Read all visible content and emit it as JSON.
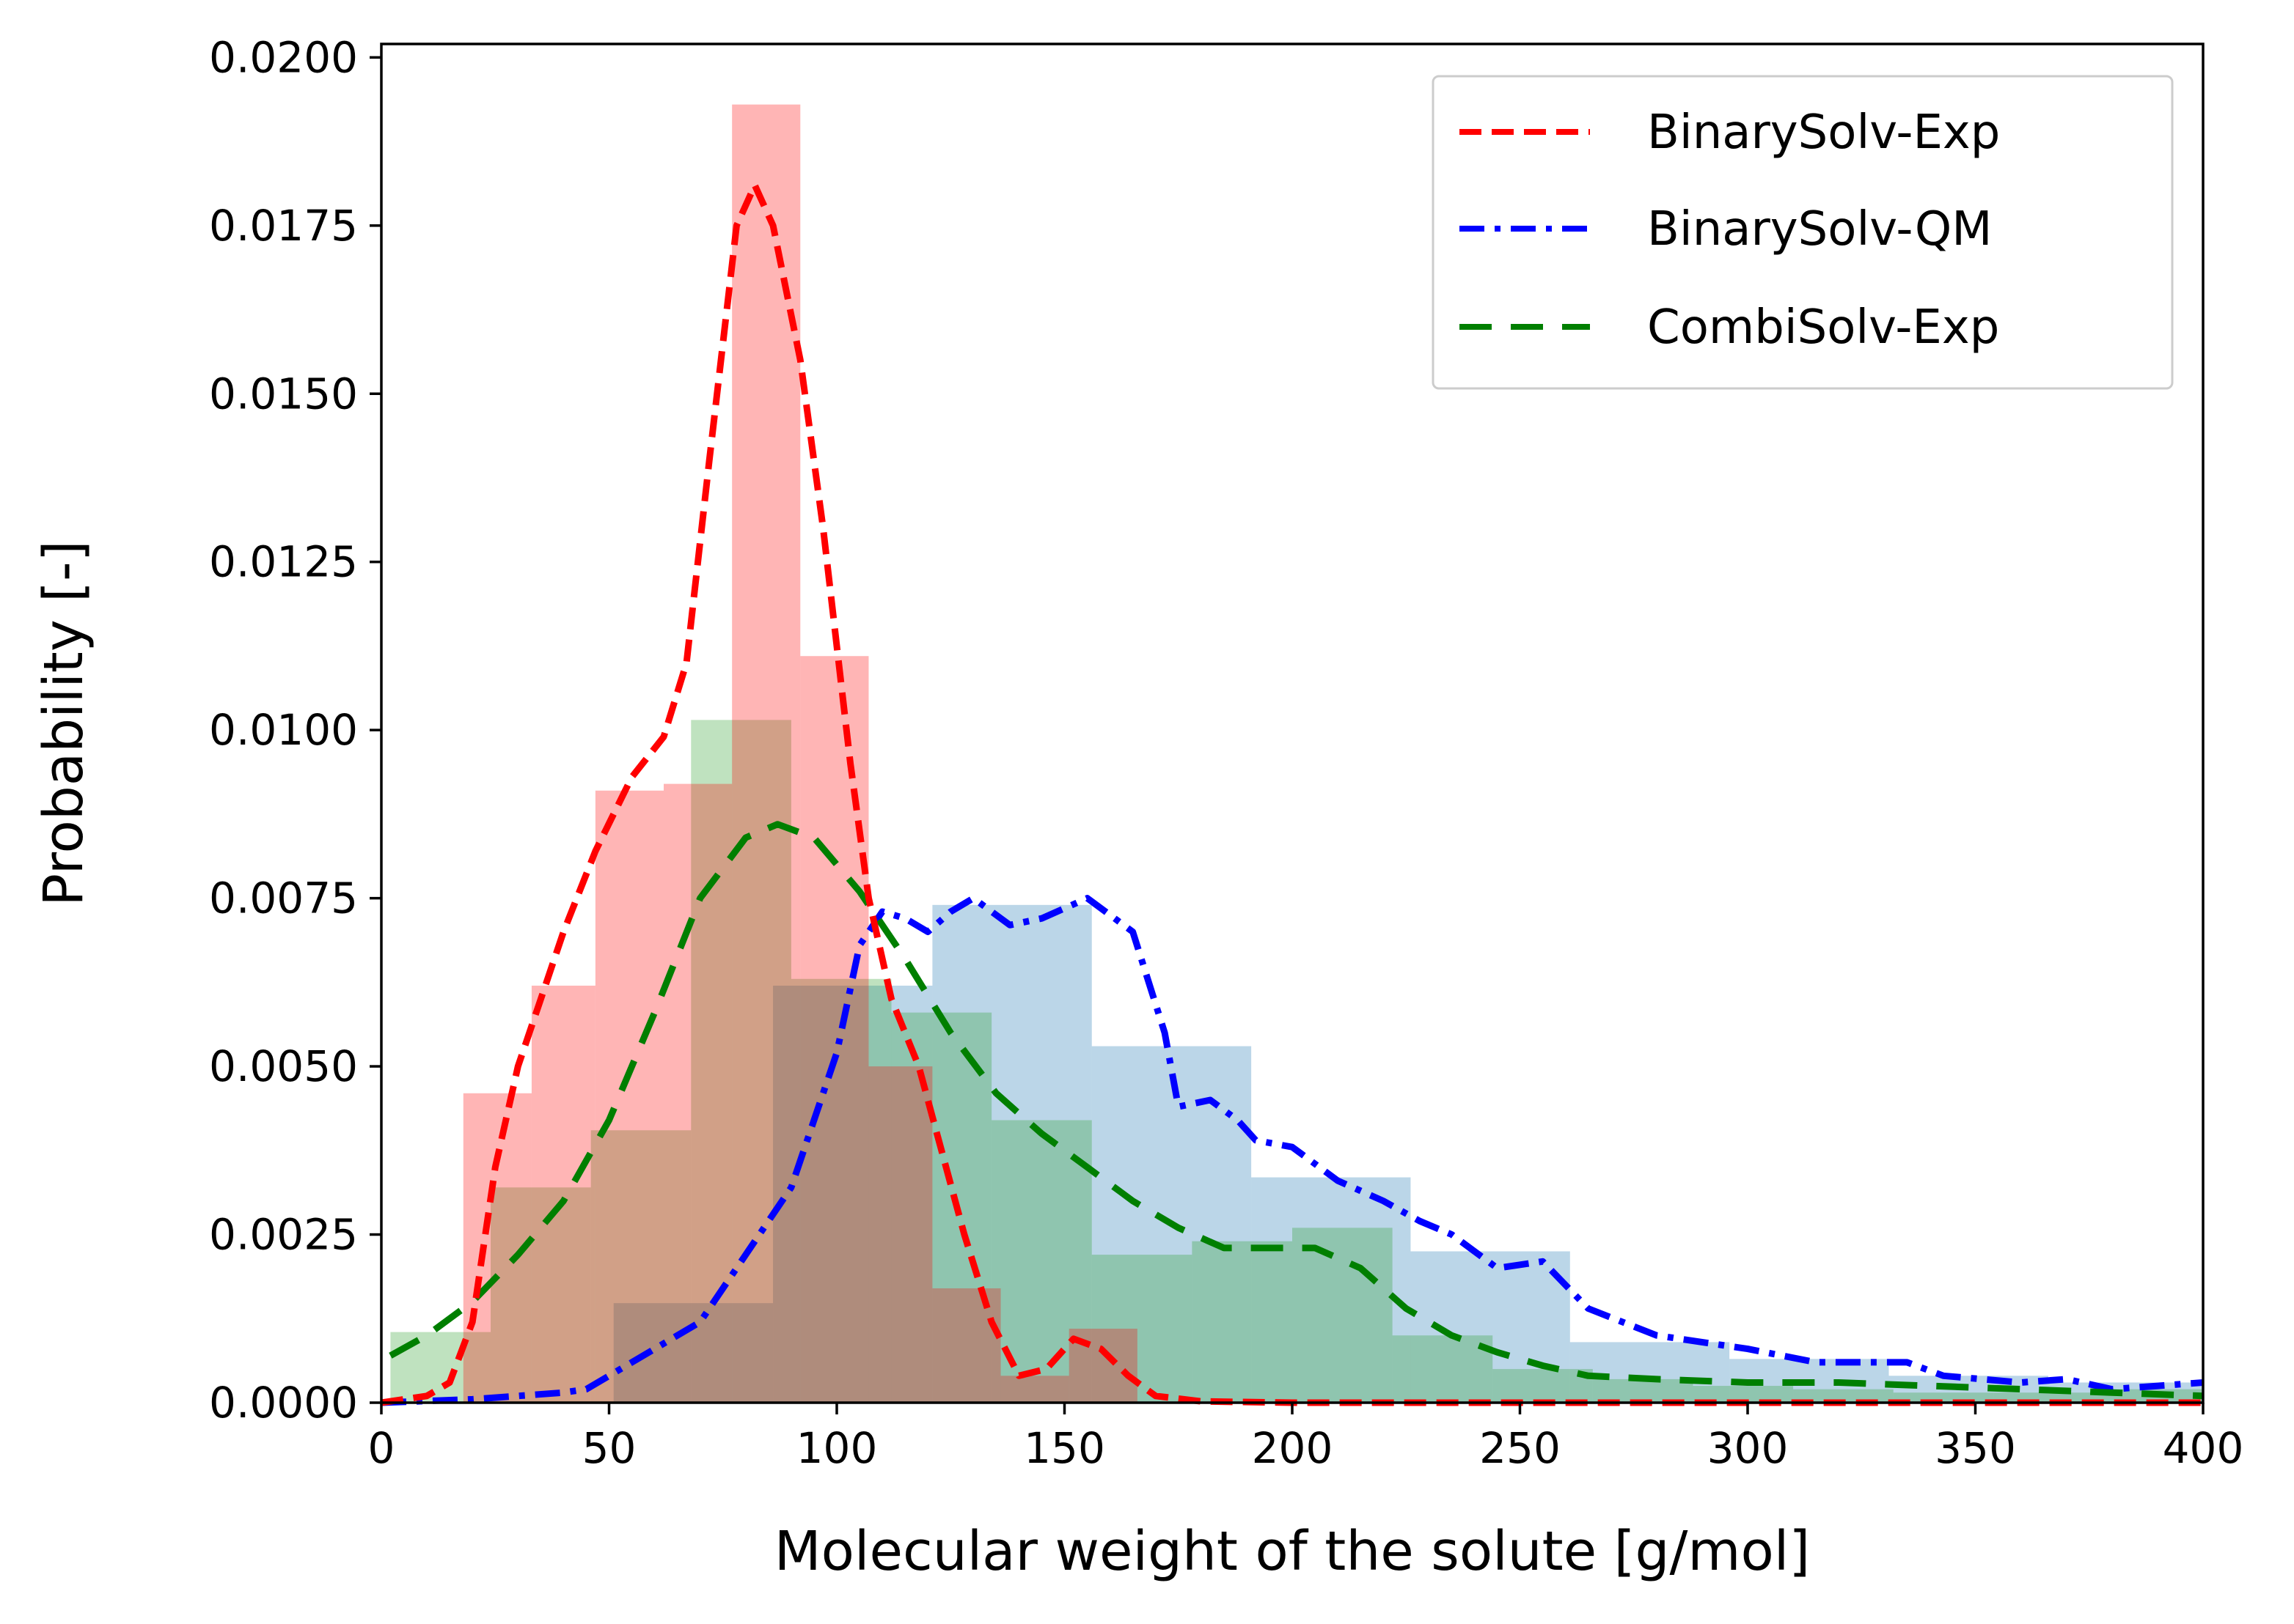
{
  "chart_data": {
    "type": "histogram-with-density",
    "xlabel": "Molecular weight of the solute [g/mol]",
    "ylabel": "Probability [-]",
    "xlim": [
      0,
      400
    ],
    "ylim": [
      0,
      0.0202
    ],
    "xticks": [
      0,
      50,
      100,
      150,
      200,
      250,
      300,
      350,
      400
    ],
    "xtick_labels": [
      "0",
      "50",
      "100",
      "150",
      "200",
      "250",
      "300",
      "350",
      "400"
    ],
    "yticks": [
      0,
      0.0025,
      0.005,
      0.0075,
      0.01,
      0.0125,
      0.015,
      0.0175,
      0.02
    ],
    "ytick_labels": [
      "0.0000",
      "0.0025",
      "0.0050",
      "0.0075",
      "0.0100",
      "0.0125",
      "0.0150",
      "0.0175",
      "0.0200"
    ],
    "grid": false,
    "legend_position": "top-right",
    "series": [
      {
        "name": "BinarySolv-QM",
        "color": "#0000ff",
        "hist_color": "#bdd7ea",
        "line_style": "dashdot",
        "histogram": [
          {
            "x0": 0,
            "x1": 51,
            "y": 0.0
          },
          {
            "x0": 51,
            "x1": 86,
            "y": 0.00148
          },
          {
            "x0": 86,
            "x1": 121,
            "y": 0.0062
          },
          {
            "x0": 121,
            "x1": 156,
            "y": 0.0074
          },
          {
            "x0": 156,
            "x1": 191,
            "y": 0.0053
          },
          {
            "x0": 191,
            "x1": 226,
            "y": 0.00335
          },
          {
            "x0": 226,
            "x1": 261,
            "y": 0.00225
          },
          {
            "x0": 261,
            "x1": 296,
            "y": 0.0009
          },
          {
            "x0": 296,
            "x1": 331,
            "y": 0.00065
          },
          {
            "x0": 331,
            "x1": 366,
            "y": 0.0004
          },
          {
            "x0": 366,
            "x1": 400,
            "y": 0.0003
          }
        ],
        "density": [
          [
            0,
            0
          ],
          [
            20,
            5e-05
          ],
          [
            30,
            0.0001
          ],
          [
            40,
            0.00015
          ],
          [
            45,
            0.0002
          ],
          [
            50,
            0.0004
          ],
          [
            60,
            0.0008
          ],
          [
            70,
            0.0012
          ],
          [
            80,
            0.0022
          ],
          [
            90,
            0.0032
          ],
          [
            100,
            0.0052
          ],
          [
            105,
            0.0068
          ],
          [
            110,
            0.0073
          ],
          [
            115,
            0.0072
          ],
          [
            120,
            0.007
          ],
          [
            125,
            0.0073
          ],
          [
            130,
            0.0075
          ],
          [
            138,
            0.0071
          ],
          [
            145,
            0.0072
          ],
          [
            155,
            0.0075
          ],
          [
            165,
            0.007
          ],
          [
            172,
            0.0055
          ],
          [
            175,
            0.0044
          ],
          [
            182,
            0.0045
          ],
          [
            188,
            0.0042
          ],
          [
            192,
            0.0039
          ],
          [
            200,
            0.0038
          ],
          [
            210,
            0.0033
          ],
          [
            220,
            0.003
          ],
          [
            228,
            0.0027
          ],
          [
            235,
            0.0025
          ],
          [
            245,
            0.002
          ],
          [
            255,
            0.0021
          ],
          [
            265,
            0.0014
          ],
          [
            280,
            0.001
          ],
          [
            300,
            0.0008
          ],
          [
            315,
            0.0006
          ],
          [
            325,
            0.0006
          ],
          [
            335,
            0.0006
          ],
          [
            343,
            0.0004
          ],
          [
            360,
            0.0003
          ],
          [
            370,
            0.00035
          ],
          [
            380,
            0.0002
          ],
          [
            390,
            0.00025
          ],
          [
            400,
            0.0003
          ]
        ]
      },
      {
        "name": "CombiSolv-Exp",
        "color": "#007f00",
        "hist_color": "#abd9a8",
        "line_style": "dashed",
        "histogram": [
          {
            "x0": 2,
            "x1": 24,
            "y": 0.00105
          },
          {
            "x0": 24,
            "x1": 46,
            "y": 0.0032
          },
          {
            "x0": 46,
            "x1": 68,
            "y": 0.00405
          },
          {
            "x0": 68,
            "x1": 90,
            "y": 0.01015
          },
          {
            "x0": 90,
            "x1": 112,
            "y": 0.0063
          },
          {
            "x0": 112,
            "x1": 134,
            "y": 0.0058
          },
          {
            "x0": 134,
            "x1": 156,
            "y": 0.0042
          },
          {
            "x0": 156,
            "x1": 178,
            "y": 0.0022
          },
          {
            "x0": 178,
            "x1": 200,
            "y": 0.0024
          },
          {
            "x0": 200,
            "x1": 222,
            "y": 0.0026
          },
          {
            "x0": 222,
            "x1": 244,
            "y": 0.001
          },
          {
            "x0": 244,
            "x1": 266,
            "y": 0.0005
          },
          {
            "x0": 266,
            "x1": 288,
            "y": 0.00035
          },
          {
            "x0": 288,
            "x1": 310,
            "y": 0.00025
          },
          {
            "x0": 310,
            "x1": 332,
            "y": 0.0002
          },
          {
            "x0": 332,
            "x1": 354,
            "y": 0.00015
          },
          {
            "x0": 354,
            "x1": 376,
            "y": 0.00015
          },
          {
            "x0": 376,
            "x1": 400,
            "y": 0.0002
          }
        ],
        "density": [
          [
            2,
            0.0007
          ],
          [
            10,
            0.001
          ],
          [
            20,
            0.0015
          ],
          [
            30,
            0.0022
          ],
          [
            40,
            0.003
          ],
          [
            50,
            0.0042
          ],
          [
            60,
            0.0058
          ],
          [
            70,
            0.0075
          ],
          [
            80,
            0.0084
          ],
          [
            87,
            0.0086
          ],
          [
            95,
            0.0084
          ],
          [
            105,
            0.0076
          ],
          [
            115,
            0.0066
          ],
          [
            125,
            0.0055
          ],
          [
            135,
            0.0046
          ],
          [
            145,
            0.004
          ],
          [
            155,
            0.0035
          ],
          [
            165,
            0.003
          ],
          [
            175,
            0.0026
          ],
          [
            185,
            0.0023
          ],
          [
            195,
            0.0023
          ],
          [
            205,
            0.0023
          ],
          [
            215,
            0.002
          ],
          [
            225,
            0.0014
          ],
          [
            235,
            0.001
          ],
          [
            245,
            0.00075
          ],
          [
            255,
            0.00055
          ],
          [
            265,
            0.0004
          ],
          [
            280,
            0.00035
          ],
          [
            300,
            0.0003
          ],
          [
            320,
            0.0003
          ],
          [
            340,
            0.00025
          ],
          [
            360,
            0.0002
          ],
          [
            380,
            0.00015
          ],
          [
            400,
            0.0001
          ]
        ]
      },
      {
        "name": "BinarySolv-Exp",
        "color": "#ff0000",
        "hist_color": "#ffb7b7",
        "line_style": "dashed",
        "histogram": [
          {
            "x0": 18,
            "x1": 33,
            "y": 0.0046
          },
          {
            "x0": 33,
            "x1": 47,
            "y": 0.0062
          },
          {
            "x0": 47,
            "x1": 62,
            "y": 0.0091
          },
          {
            "x0": 62,
            "x1": 77,
            "y": 0.0092
          },
          {
            "x0": 77,
            "x1": 92,
            "y": 0.0193
          },
          {
            "x0": 92,
            "x1": 107,
            "y": 0.0111
          },
          {
            "x0": 107,
            "x1": 121,
            "y": 0.005
          },
          {
            "x0": 121,
            "x1": 136,
            "y": 0.0017
          },
          {
            "x0": 136,
            "x1": 151,
            "y": 0.0004
          },
          {
            "x0": 151,
            "x1": 166,
            "y": 0.0011
          },
          {
            "x0": 166,
            "x1": 400,
            "y": 0.0
          }
        ],
        "density": [
          [
            0,
            0
          ],
          [
            10,
            0.0001
          ],
          [
            15,
            0.0003
          ],
          [
            20,
            0.0012
          ],
          [
            25,
            0.0035
          ],
          [
            30,
            0.005
          ],
          [
            35,
            0.006
          ],
          [
            40,
            0.007
          ],
          [
            47,
            0.0082
          ],
          [
            55,
            0.0093
          ],
          [
            62,
            0.0099
          ],
          [
            67,
            0.011
          ],
          [
            72,
            0.014
          ],
          [
            78,
            0.0175
          ],
          [
            82,
            0.0181
          ],
          [
            86,
            0.0175
          ],
          [
            92,
            0.0155
          ],
          [
            97,
            0.013
          ],
          [
            103,
            0.0095
          ],
          [
            107,
            0.0075
          ],
          [
            112,
            0.006
          ],
          [
            118,
            0.005
          ],
          [
            122,
            0.004
          ],
          [
            128,
            0.0025
          ],
          [
            134,
            0.0012
          ],
          [
            140,
            0.0004
          ],
          [
            146,
            0.0005
          ],
          [
            152,
            0.00095
          ],
          [
            158,
            0.0008
          ],
          [
            164,
            0.0004
          ],
          [
            170,
            0.0001
          ],
          [
            180,
            2e-05
          ],
          [
            200,
            0
          ],
          [
            400,
            0
          ]
        ]
      }
    ]
  },
  "legend": [
    {
      "label": "BinarySolv-Exp",
      "color": "#ff0000",
      "style": "dashed"
    },
    {
      "label": "BinarySolv-QM",
      "color": "#0000ff",
      "style": "dashdot"
    },
    {
      "label": "CombiSolv-Exp",
      "color": "#007f00",
      "style": "longdash"
    }
  ]
}
